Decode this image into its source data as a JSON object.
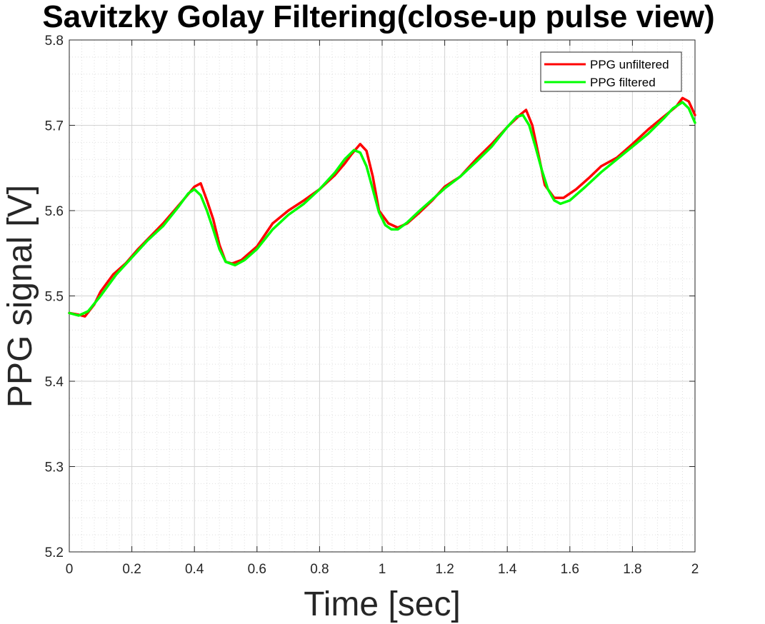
{
  "chart_data": {
    "type": "line",
    "title": "Savitzky Golay Filtering(close-up pulse view)",
    "xlabel": "Time [sec]",
    "ylabel": "PPG signal [V]",
    "xlim": [
      0,
      2
    ],
    "ylim": [
      5.2,
      5.8
    ],
    "xticks": [
      "0",
      "0.2",
      "0.4",
      "0.6",
      "0.8",
      "1",
      "1.2",
      "1.4",
      "1.6",
      "1.8",
      "2"
    ],
    "yticks": [
      "5.2",
      "5.3",
      "5.4",
      "5.5",
      "5.6",
      "5.7",
      "5.8"
    ],
    "grid": true,
    "minor_grid": true,
    "legend_position": "top-right",
    "series": [
      {
        "name": "PPG unfiltered",
        "color": "#ff0000",
        "x": [
          0,
          0.03,
          0.05,
          0.08,
          0.1,
          0.14,
          0.18,
          0.22,
          0.26,
          0.3,
          0.34,
          0.37,
          0.4,
          0.42,
          0.44,
          0.46,
          0.48,
          0.5,
          0.52,
          0.55,
          0.6,
          0.65,
          0.7,
          0.75,
          0.8,
          0.85,
          0.88,
          0.9,
          0.93,
          0.95,
          0.97,
          0.99,
          1.02,
          1.05,
          1.08,
          1.12,
          1.16,
          1.2,
          1.25,
          1.3,
          1.35,
          1.4,
          1.44,
          1.46,
          1.48,
          1.5,
          1.52,
          1.55,
          1.58,
          1.62,
          1.66,
          1.7,
          1.75,
          1.8,
          1.85,
          1.9,
          1.94,
          1.96,
          1.98,
          2.0
        ],
        "y": [
          5.48,
          5.478,
          5.476,
          5.49,
          5.505,
          5.525,
          5.538,
          5.555,
          5.57,
          5.585,
          5.602,
          5.615,
          5.628,
          5.632,
          5.612,
          5.59,
          5.56,
          5.54,
          5.538,
          5.542,
          5.558,
          5.585,
          5.6,
          5.612,
          5.625,
          5.642,
          5.655,
          5.665,
          5.678,
          5.67,
          5.64,
          5.6,
          5.585,
          5.58,
          5.585,
          5.598,
          5.612,
          5.628,
          5.64,
          5.66,
          5.678,
          5.698,
          5.712,
          5.718,
          5.7,
          5.665,
          5.63,
          5.615,
          5.615,
          5.625,
          5.638,
          5.652,
          5.662,
          5.678,
          5.695,
          5.71,
          5.722,
          5.732,
          5.728,
          5.712
        ]
      },
      {
        "name": "PPG filtered",
        "color": "#00ff00",
        "x": [
          0,
          0.03,
          0.06,
          0.1,
          0.15,
          0.2,
          0.25,
          0.3,
          0.35,
          0.38,
          0.4,
          0.42,
          0.44,
          0.46,
          0.48,
          0.5,
          0.53,
          0.56,
          0.6,
          0.65,
          0.7,
          0.75,
          0.8,
          0.85,
          0.88,
          0.91,
          0.93,
          0.95,
          0.97,
          0.99,
          1.01,
          1.03,
          1.05,
          1.08,
          1.12,
          1.16,
          1.2,
          1.25,
          1.3,
          1.35,
          1.4,
          1.43,
          1.45,
          1.47,
          1.49,
          1.51,
          1.53,
          1.55,
          1.57,
          1.6,
          1.65,
          1.7,
          1.75,
          1.8,
          1.85,
          1.9,
          1.93,
          1.96,
          1.98,
          2.0
        ],
        "y": [
          5.48,
          5.477,
          5.482,
          5.5,
          5.525,
          5.545,
          5.565,
          5.582,
          5.605,
          5.62,
          5.625,
          5.618,
          5.6,
          5.578,
          5.555,
          5.54,
          5.536,
          5.542,
          5.555,
          5.578,
          5.595,
          5.608,
          5.625,
          5.645,
          5.66,
          5.671,
          5.668,
          5.652,
          5.625,
          5.598,
          5.583,
          5.578,
          5.578,
          5.586,
          5.6,
          5.613,
          5.626,
          5.64,
          5.657,
          5.675,
          5.698,
          5.71,
          5.712,
          5.7,
          5.675,
          5.648,
          5.625,
          5.612,
          5.608,
          5.612,
          5.628,
          5.645,
          5.66,
          5.675,
          5.69,
          5.708,
          5.72,
          5.727,
          5.72,
          5.703
        ]
      }
    ]
  }
}
